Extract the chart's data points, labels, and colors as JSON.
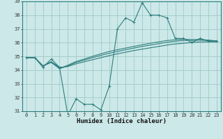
{
  "x": [
    0,
    1,
    2,
    3,
    4,
    5,
    6,
    7,
    8,
    9,
    10,
    11,
    12,
    13,
    14,
    15,
    16,
    17,
    18,
    19,
    20,
    21,
    22,
    23
  ],
  "line1": [
    34.9,
    34.9,
    34.2,
    34.8,
    34.2,
    30.7,
    31.9,
    31.5,
    31.5,
    31.1,
    32.8,
    37.0,
    37.8,
    37.5,
    38.9,
    38.0,
    38.0,
    37.8,
    36.3,
    36.3,
    36.0,
    36.3,
    36.1,
    36.1
  ],
  "line2": [
    34.9,
    34.9,
    34.3,
    34.6,
    34.2,
    34.25,
    34.45,
    34.6,
    34.75,
    34.9,
    35.05,
    35.18,
    35.3,
    35.42,
    35.52,
    35.62,
    35.72,
    35.82,
    35.9,
    35.95,
    36.0,
    36.05,
    36.05,
    36.05
  ],
  "line3": [
    34.9,
    34.9,
    34.3,
    34.6,
    34.1,
    34.3,
    34.55,
    34.72,
    34.9,
    35.07,
    35.22,
    35.35,
    35.48,
    35.6,
    35.72,
    35.82,
    35.92,
    36.02,
    36.1,
    36.15,
    36.15,
    36.18,
    36.15,
    36.12
  ],
  "line4": [
    34.9,
    34.9,
    34.3,
    34.55,
    34.1,
    34.35,
    34.62,
    34.8,
    35.0,
    35.18,
    35.35,
    35.48,
    35.6,
    35.72,
    35.84,
    35.95,
    36.05,
    36.15,
    36.2,
    36.25,
    36.22,
    36.22,
    36.18,
    36.12
  ],
  "line_color": "#2e7d7d",
  "bg_color": "#cce8e8",
  "grid_color": "#a0c8c8",
  "ylim": [
    31,
    39
  ],
  "xlim": [
    -0.5,
    23.5
  ],
  "yticks": [
    31,
    32,
    33,
    34,
    35,
    36,
    37,
    38,
    39
  ],
  "xticks": [
    0,
    1,
    2,
    3,
    4,
    5,
    6,
    7,
    8,
    9,
    10,
    11,
    12,
    13,
    14,
    15,
    16,
    17,
    18,
    19,
    20,
    21,
    22,
    23
  ],
  "xlabel": "Humidex (Indice chaleur)",
  "tick_fontsize": 5.0,
  "xlabel_fontsize": 6.5
}
